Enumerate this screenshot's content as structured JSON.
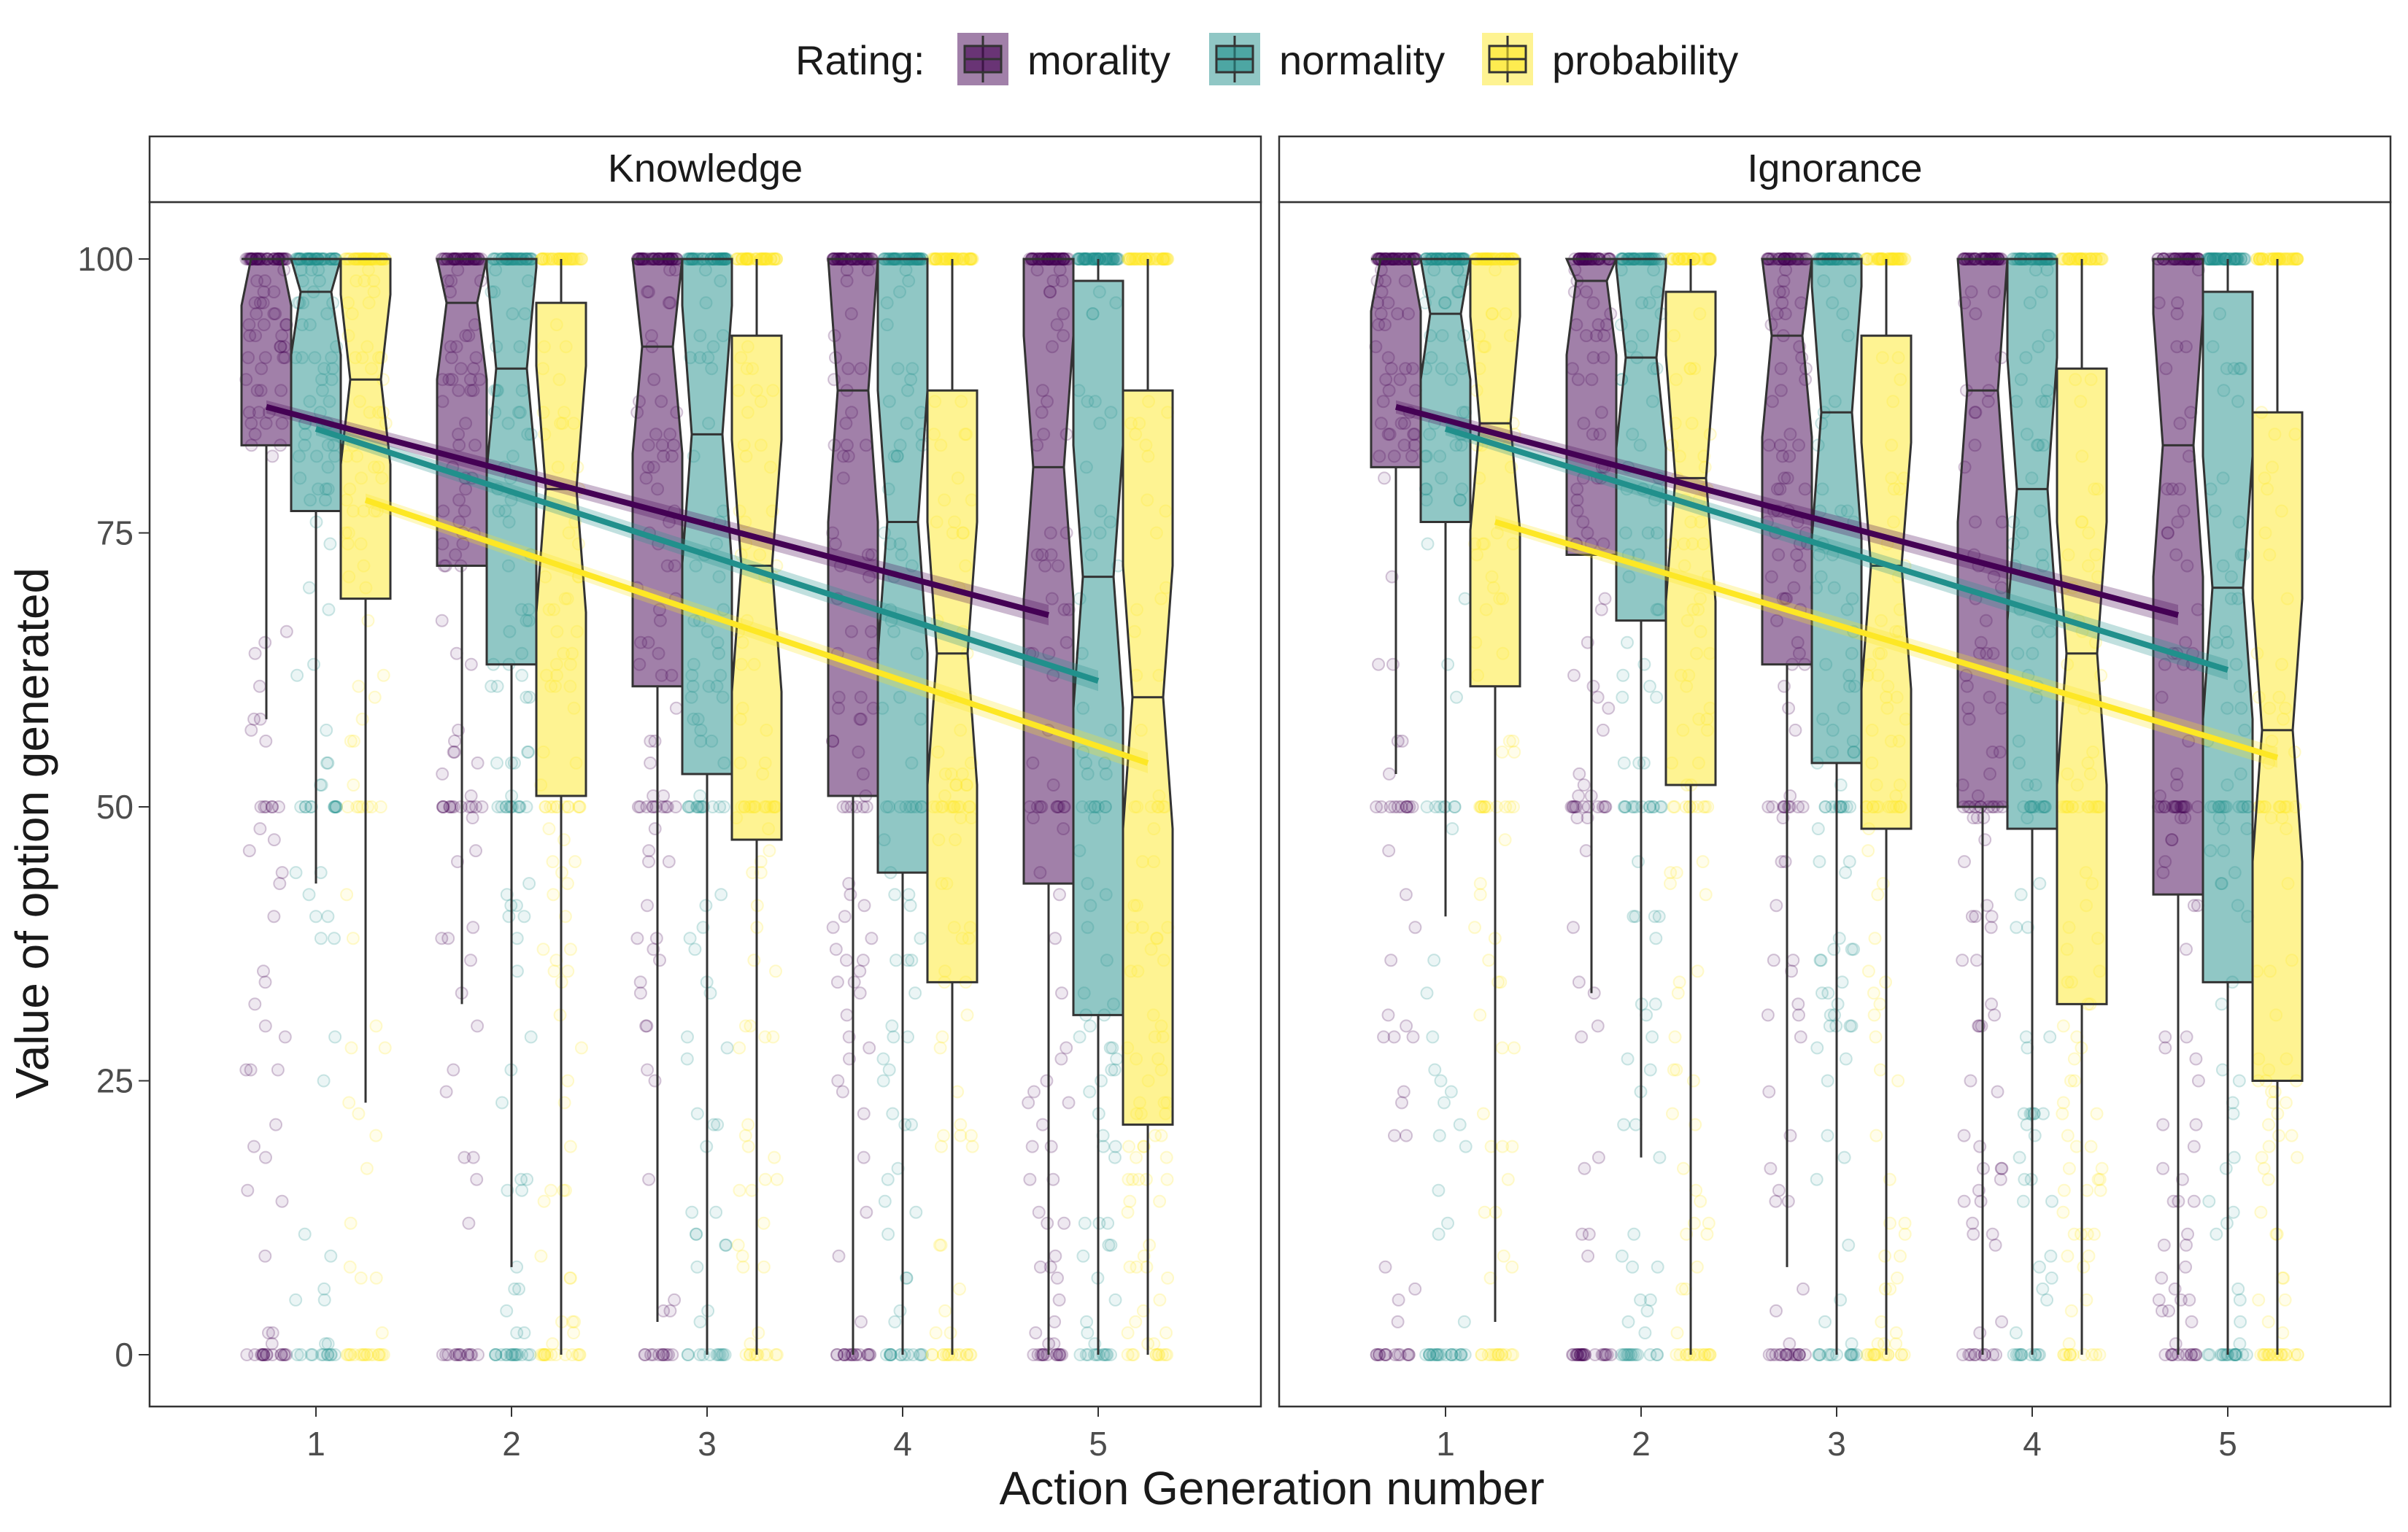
{
  "chart_data": {
    "type": "box",
    "xlabel": "Action Generation number",
    "ylabel": "Value of option generated",
    "ylim": [
      0,
      100
    ],
    "yticks": [
      0,
      25,
      50,
      75,
      100
    ],
    "categories": [
      "1",
      "2",
      "3",
      "4",
      "5"
    ],
    "legend": {
      "title": "Rating:",
      "position": "top"
    },
    "series": [
      {
        "name": "morality",
        "color": "#440154"
      },
      {
        "name": "normality",
        "color": "#21908C"
      },
      {
        "name": "probability",
        "color": "#FDE725"
      }
    ],
    "panels": [
      {
        "title": "Knowledge",
        "boxes": {
          "morality": [
            {
              "x": 1,
              "q1": 83,
              "median": 100,
              "q3": 100,
              "whisker_low": 58,
              "whisker_high": 100
            },
            {
              "x": 2,
              "q1": 72,
              "median": 96,
              "q3": 100,
              "whisker_low": 32,
              "whisker_high": 100
            },
            {
              "x": 3,
              "q1": 61,
              "median": 92,
              "q3": 100,
              "whisker_low": 3,
              "whisker_high": 100
            },
            {
              "x": 4,
              "q1": 51,
              "median": 88,
              "q3": 100,
              "whisker_low": 0,
              "whisker_high": 100
            },
            {
              "x": 5,
              "q1": 43,
              "median": 81,
              "q3": 100,
              "whisker_low": 0,
              "whisker_high": 100
            }
          ],
          "normality": [
            {
              "x": 1,
              "q1": 77,
              "median": 97,
              "q3": 100,
              "whisker_low": 43,
              "whisker_high": 100
            },
            {
              "x": 2,
              "q1": 63,
              "median": 90,
              "q3": 100,
              "whisker_low": 8,
              "whisker_high": 100
            },
            {
              "x": 3,
              "q1": 53,
              "median": 84,
              "q3": 100,
              "whisker_low": 0,
              "whisker_high": 100
            },
            {
              "x": 4,
              "q1": 44,
              "median": 76,
              "q3": 100,
              "whisker_low": 0,
              "whisker_high": 100
            },
            {
              "x": 5,
              "q1": 31,
              "median": 71,
              "q3": 98,
              "whisker_low": 0,
              "whisker_high": 100
            }
          ],
          "probability": [
            {
              "x": 1,
              "q1": 69,
              "median": 89,
              "q3": 100,
              "whisker_low": 23,
              "whisker_high": 100
            },
            {
              "x": 2,
              "q1": 51,
              "median": 79,
              "q3": 96,
              "whisker_low": 0,
              "whisker_high": 100
            },
            {
              "x": 3,
              "q1": 47,
              "median": 72,
              "q3": 93,
              "whisker_low": 0,
              "whisker_high": 100
            },
            {
              "x": 4,
              "q1": 34,
              "median": 64,
              "q3": 88,
              "whisker_low": 0,
              "whisker_high": 100
            },
            {
              "x": 5,
              "q1": 21,
              "median": 60,
              "q3": 88,
              "whisker_low": 0,
              "whisker_high": 100
            }
          ]
        },
        "trend": {
          "morality": [
            86.5,
            67.5
          ],
          "normality": [
            84.5,
            61.5
          ],
          "probability": [
            78.0,
            54.0
          ]
        }
      },
      {
        "title": "Ignorance",
        "boxes": {
          "morality": [
            {
              "x": 1,
              "q1": 81,
              "median": 100,
              "q3": 100,
              "whisker_low": 53,
              "whisker_high": 100
            },
            {
              "x": 2,
              "q1": 73,
              "median": 98,
              "q3": 100,
              "whisker_low": 33,
              "whisker_high": 100
            },
            {
              "x": 3,
              "q1": 63,
              "median": 93,
              "q3": 100,
              "whisker_low": 8,
              "whisker_high": 100
            },
            {
              "x": 4,
              "q1": 50,
              "median": 88,
              "q3": 100,
              "whisker_low": 0,
              "whisker_high": 100
            },
            {
              "x": 5,
              "q1": 42,
              "median": 83,
              "q3": 100,
              "whisker_low": 0,
              "whisker_high": 100
            }
          ],
          "normality": [
            {
              "x": 1,
              "q1": 76,
              "median": 95,
              "q3": 100,
              "whisker_low": 40,
              "whisker_high": 100
            },
            {
              "x": 2,
              "q1": 67,
              "median": 91,
              "q3": 100,
              "whisker_low": 18,
              "whisker_high": 100
            },
            {
              "x": 3,
              "q1": 54,
              "median": 86,
              "q3": 100,
              "whisker_low": 0,
              "whisker_high": 100
            },
            {
              "x": 4,
              "q1": 48,
              "median": 79,
              "q3": 100,
              "whisker_low": 0,
              "whisker_high": 100
            },
            {
              "x": 5,
              "q1": 34,
              "median": 70,
              "q3": 97,
              "whisker_low": 0,
              "whisker_high": 100
            }
          ],
          "probability": [
            {
              "x": 1,
              "q1": 61,
              "median": 85,
              "q3": 100,
              "whisker_low": 3,
              "whisker_high": 100
            },
            {
              "x": 2,
              "q1": 52,
              "median": 80,
              "q3": 97,
              "whisker_low": 0,
              "whisker_high": 100
            },
            {
              "x": 3,
              "q1": 48,
              "median": 72,
              "q3": 93,
              "whisker_low": 0,
              "whisker_high": 100
            },
            {
              "x": 4,
              "q1": 32,
              "median": 64,
              "q3": 90,
              "whisker_low": 0,
              "whisker_high": 100
            },
            {
              "x": 5,
              "q1": 25,
              "median": 57,
              "q3": 86,
              "whisker_low": 0,
              "whisker_high": 100
            }
          ]
        },
        "trend": {
          "morality": [
            86.5,
            67.5
          ],
          "normality": [
            84.5,
            62.5
          ],
          "probability": [
            76.0,
            54.5
          ]
        }
      }
    ]
  }
}
